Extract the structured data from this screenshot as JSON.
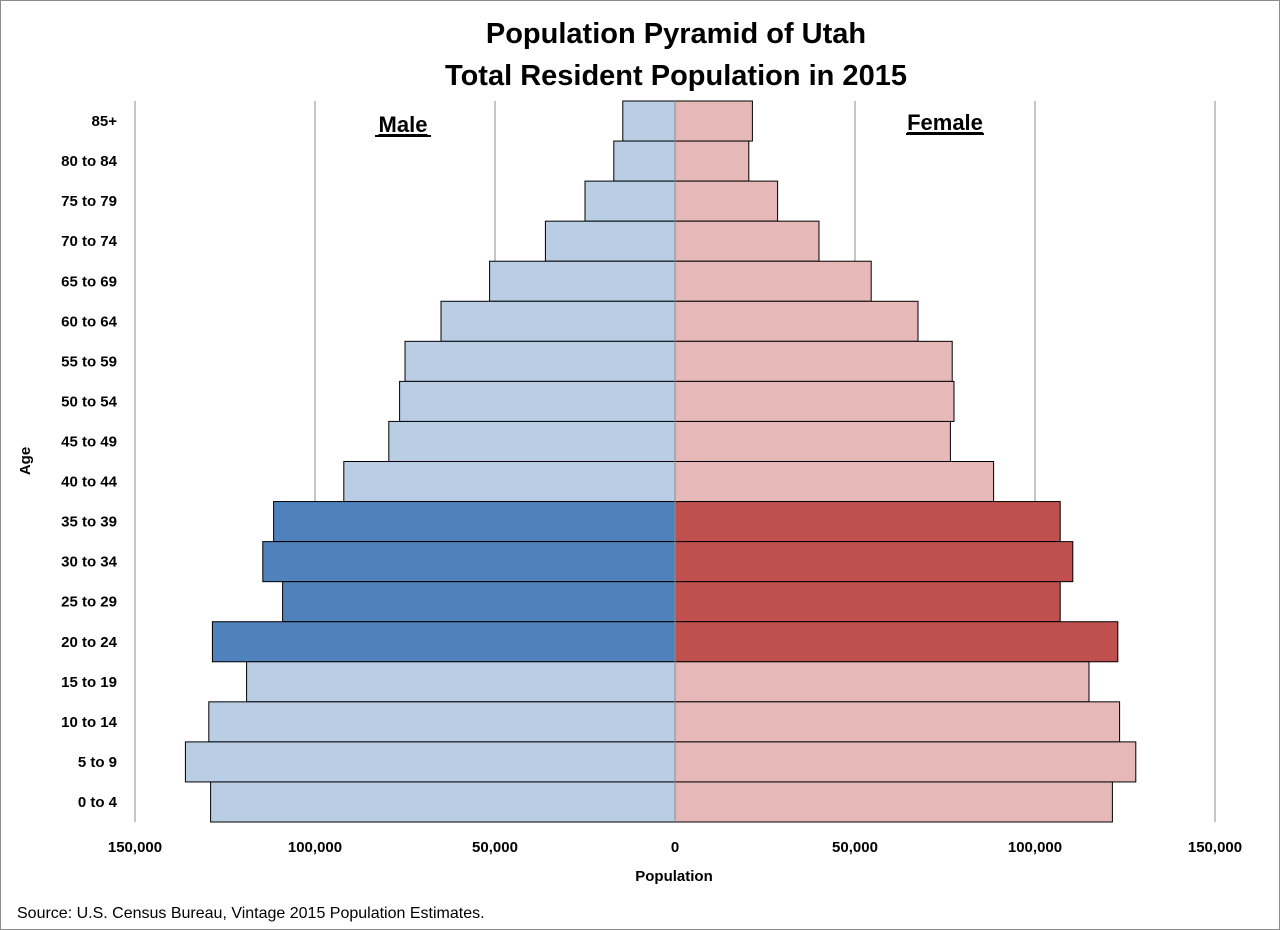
{
  "chart_data": {
    "type": "bar",
    "subtype": "population-pyramid",
    "title": "Population Pyramid of Utah",
    "subtitle": "Total Resident Population in 2015",
    "xlabel": "Population",
    "ylabel": "Age",
    "xlim": [
      -150000,
      150000
    ],
    "x_ticks": [
      -150000,
      -100000,
      -50000,
      0,
      50000,
      100000,
      150000
    ],
    "x_tick_labels": [
      "150,000",
      "100,000",
      "50,000",
      "0",
      "50,000",
      "100,000",
      "150,000"
    ],
    "grid": true,
    "male_label": "Male",
    "female_label": "Female",
    "categories": [
      "85+",
      "80 to 84",
      "75 to 79",
      "70 to 74",
      "65 to 69",
      "60 to 64",
      "55 to 59",
      "50 to 54",
      "45 to 49",
      "40 to 44",
      "35 to 39",
      "30 to 34",
      "25 to 29",
      "20 to 24",
      "15 to 19",
      "10 to 14",
      "5 to 9",
      "0 to 4"
    ],
    "highlighted_categories": [
      "35 to 39",
      "30 to 34",
      "25 to 29",
      "20 to 24"
    ],
    "series": [
      {
        "name": "Male",
        "values": [
          14500,
          17000,
          25000,
          36000,
          51500,
          65000,
          75000,
          76500,
          79500,
          92000,
          111500,
          114500,
          109000,
          128500,
          119000,
          129500,
          136000,
          129000
        ]
      },
      {
        "name": "Female",
        "values": [
          21500,
          20500,
          28500,
          40000,
          54500,
          67500,
          77000,
          77500,
          76500,
          88500,
          107000,
          110500,
          107000,
          123000,
          115000,
          123500,
          128000,
          121500
        ]
      }
    ],
    "colors": {
      "male_light": "#b9cde5",
      "male_dark": "#4f81bd",
      "female_light": "#e6b9b8",
      "female_dark": "#c0504d",
      "bar_outline": "#000000",
      "gridline": "#8c8c8c"
    }
  },
  "source": "Source: U.S. Census Bureau, Vintage 2015 Population Estimates."
}
